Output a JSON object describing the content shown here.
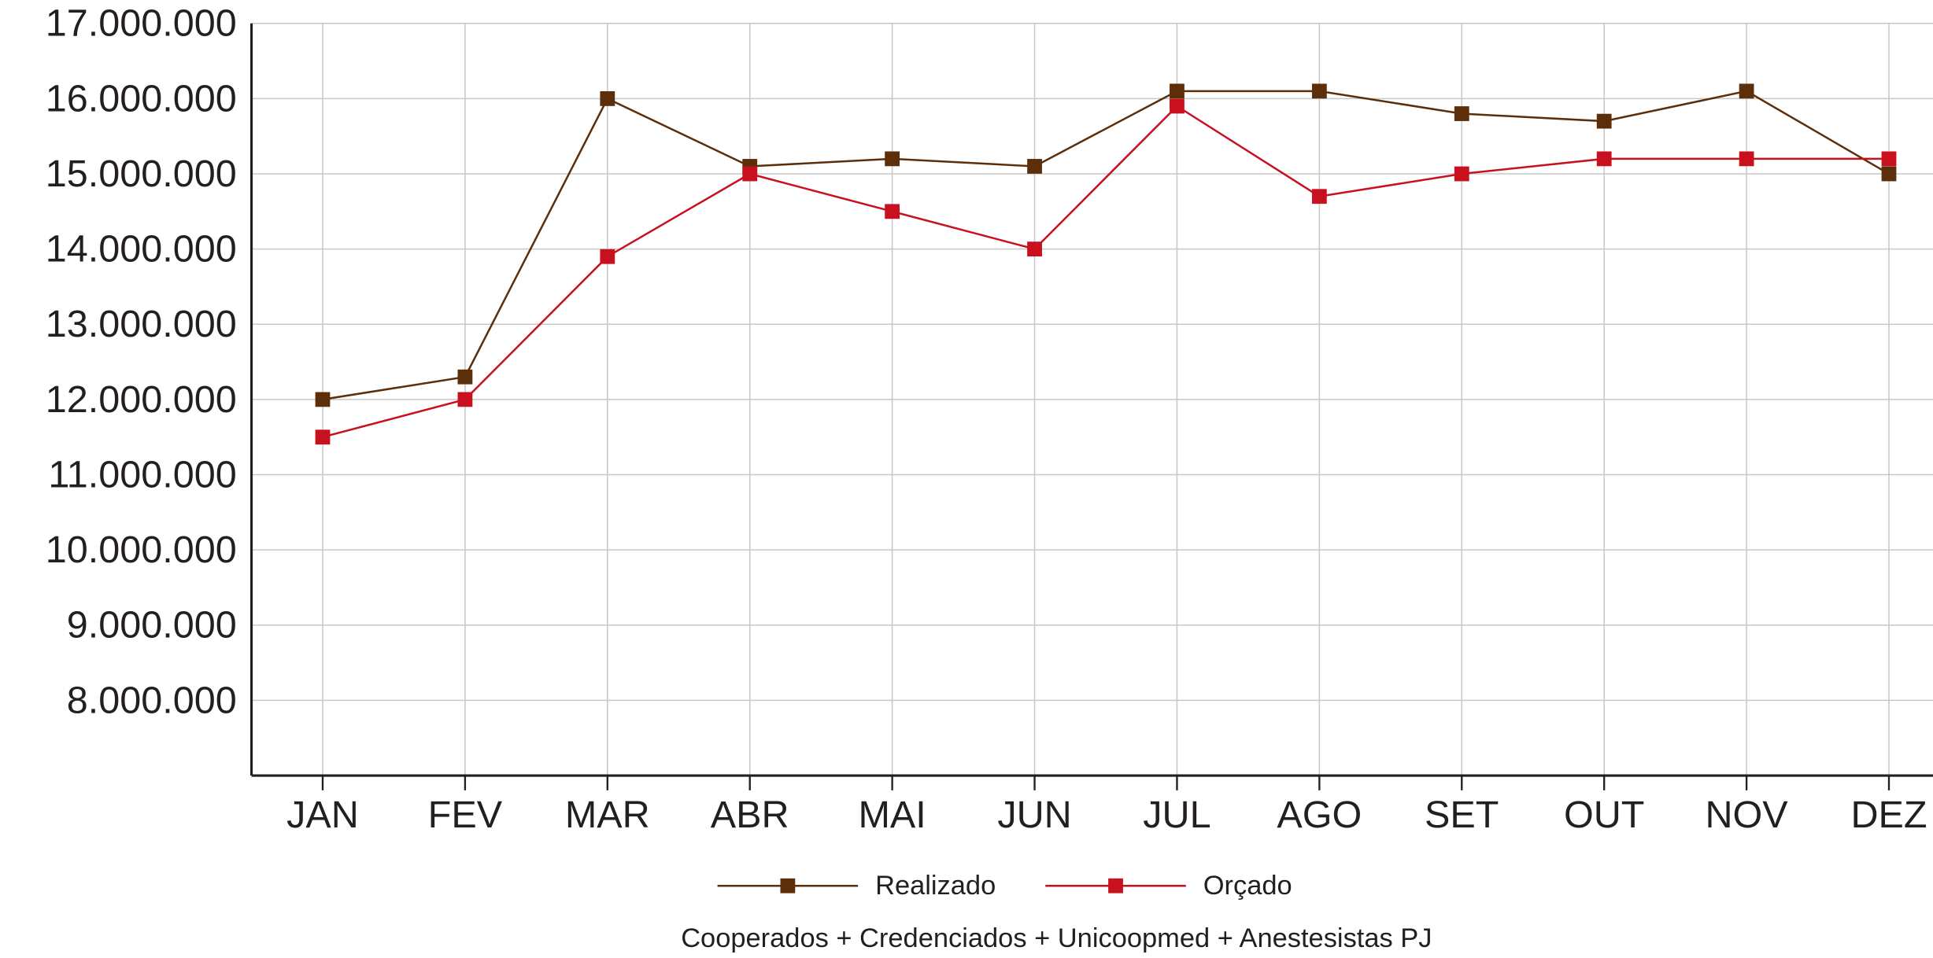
{
  "chart_data": {
    "type": "line",
    "subtitle": "Cooperados + Credenciados + Unicoopmed + Anestesistas PJ",
    "categories": [
      "JAN",
      "FEV",
      "MAR",
      "ABR",
      "MAI",
      "JUN",
      "JUL",
      "AGO",
      "SET",
      "OUT",
      "NOV",
      "DEZ"
    ],
    "series": [
      {
        "name": "Realizado",
        "color": "#5c2e0a",
        "values": [
          12000000,
          12300000,
          16000000,
          15100000,
          15200000,
          15100000,
          16100000,
          16100000,
          15800000,
          15700000,
          16100000,
          15000000
        ]
      },
      {
        "name": "Orçado",
        "color": "#c8101e",
        "values": [
          11500000,
          12000000,
          13900000,
          15000000,
          14500000,
          14000000,
          15900000,
          14700000,
          15000000,
          15200000,
          15200000,
          15200000
        ]
      }
    ],
    "ylim": [
      7000000,
      17000000
    ],
    "yticks": [
      {
        "value": 8000000,
        "label": "8.000.000"
      },
      {
        "value": 9000000,
        "label": "9.000.000"
      },
      {
        "value": 10000000,
        "label": "10.000.000"
      },
      {
        "value": 11000000,
        "label": "11.000.000"
      },
      {
        "value": 12000000,
        "label": "12.000.000"
      },
      {
        "value": 13000000,
        "label": "13.000.000"
      },
      {
        "value": 14000000,
        "label": "14.000.000"
      },
      {
        "value": 15000000,
        "label": "15.000.000"
      },
      {
        "value": 16000000,
        "label": "16.000.000"
      },
      {
        "value": 17000000,
        "label": "17.000.000"
      }
    ],
    "grid": true
  }
}
